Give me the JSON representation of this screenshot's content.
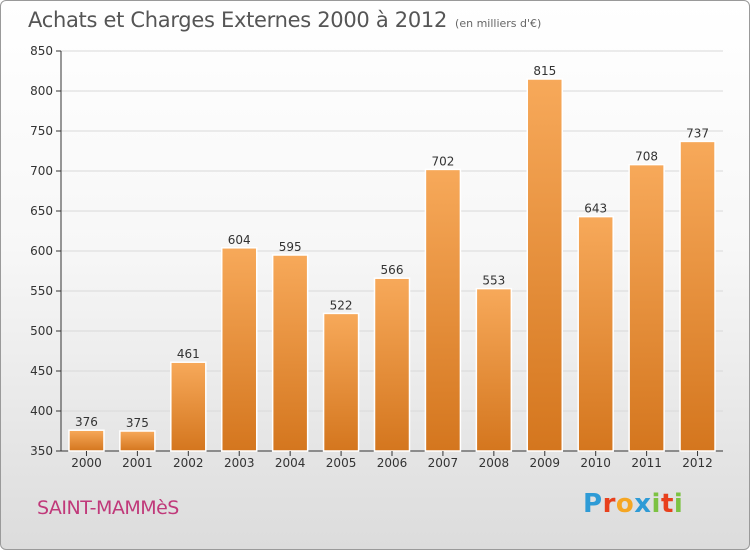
{
  "header": {
    "title": "Achats et Charges Externes 2000 à 2012",
    "subtitle": "(en milliers d'€)"
  },
  "footer": {
    "city": "SAINT-MAMMèS",
    "logo": {
      "letters": [
        "P",
        "r",
        "o",
        "x",
        "i",
        "t",
        "i"
      ],
      "colors": [
        "#2e9bd6",
        "#e8401c",
        "#f5a623",
        "#2e9bd6",
        "#7cc242",
        "#e8401c",
        "#7cc242"
      ]
    }
  },
  "colors": {
    "bar_light": "#f7a95a",
    "bar_dark": "#d4761e",
    "grid": "#d9d9d9",
    "axis": "#333333"
  },
  "chart_data": {
    "type": "bar",
    "categories": [
      "2000",
      "2001",
      "2002",
      "2003",
      "2004",
      "2005",
      "2006",
      "2007",
      "2008",
      "2009",
      "2010",
      "2011",
      "2012"
    ],
    "values": [
      376,
      375,
      461,
      604,
      595,
      522,
      566,
      702,
      553,
      815,
      643,
      708,
      737
    ],
    "ylim": [
      350,
      850
    ],
    "yticks": [
      350,
      400,
      450,
      500,
      550,
      600,
      650,
      700,
      750,
      800,
      850
    ],
    "grid": true
  }
}
